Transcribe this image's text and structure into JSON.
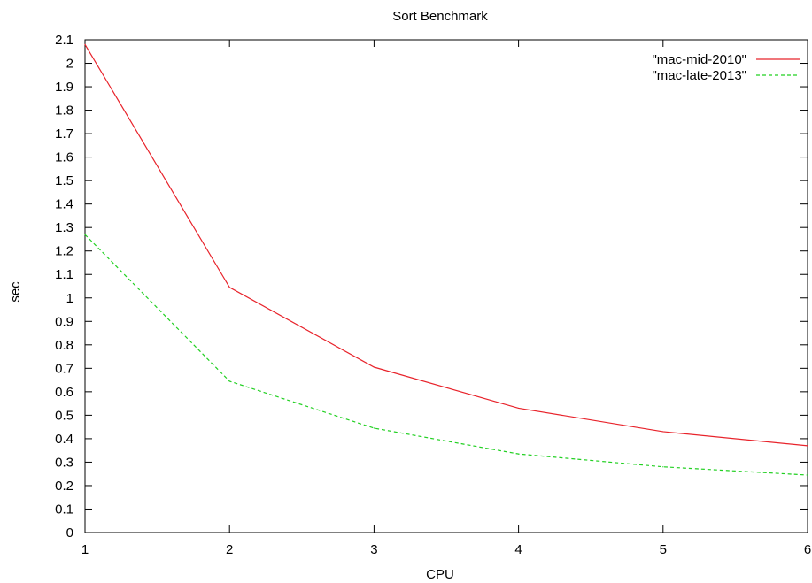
{
  "chart_data": {
    "type": "line",
    "title": "Sort Benchmark",
    "xlabel": "CPU",
    "ylabel": "sec",
    "xlim": [
      1,
      6
    ],
    "ylim": [
      0,
      2.1
    ],
    "xticks": [
      "1",
      "2",
      "3",
      "4",
      "5",
      "6"
    ],
    "yticks": [
      "0",
      "0.1",
      "0.2",
      "0.3",
      "0.4",
      "0.5",
      "0.6",
      "0.7",
      "0.8",
      "0.9",
      "1",
      "1.1",
      "1.2",
      "1.3",
      "1.4",
      "1.5",
      "1.6",
      "1.7",
      "1.8",
      "1.9",
      "2",
      "2.1"
    ],
    "grid": false,
    "legend_position": "top-right",
    "x": [
      1,
      2,
      3,
      4,
      5,
      6
    ],
    "series": [
      {
        "name": "\"mac-mid-2010\"",
        "values": [
          2.08,
          1.045,
          0.705,
          0.53,
          0.43,
          0.37
        ],
        "color": "#e8232b",
        "dash": "solid"
      },
      {
        "name": "\"mac-late-2013\"",
        "values": [
          1.27,
          0.645,
          0.445,
          0.335,
          0.28,
          0.245
        ],
        "color": "#22d022",
        "dash": "dashed"
      }
    ]
  }
}
